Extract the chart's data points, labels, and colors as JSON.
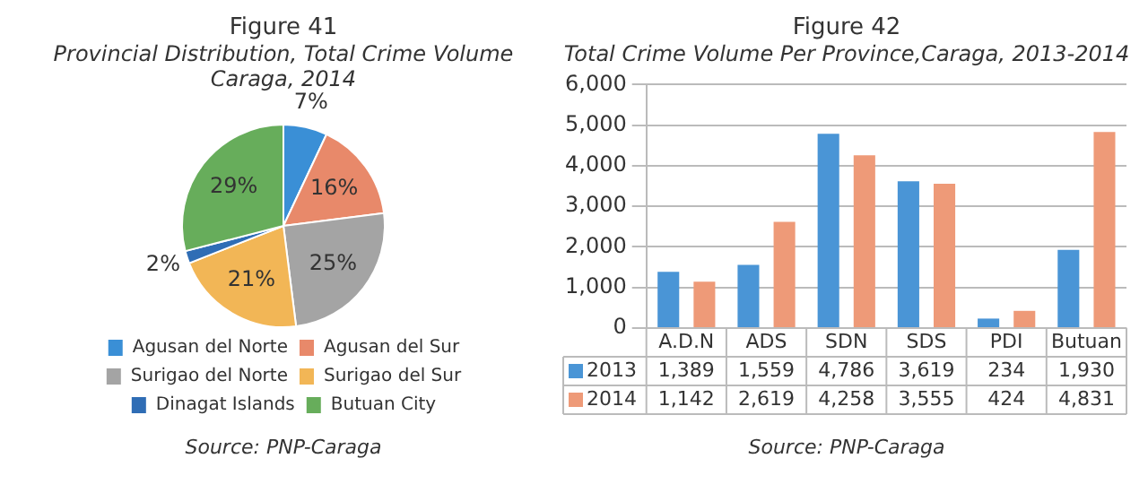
{
  "chart_data": [
    {
      "type": "pie",
      "title": "Figure 41",
      "subtitle": "Provincial Distribution, Total Crime Volume Caraga, 2014",
      "categories": [
        "Agusan del Norte",
        "Agusan del Sur",
        "Surigao del Norte",
        "Surigao del Sur",
        "Dinagat Islands",
        "Butuan City"
      ],
      "values": [
        7,
        16,
        25,
        21,
        2,
        29
      ],
      "value_labels": [
        "7%",
        "16%",
        "25%",
        "21%",
        "2%",
        "29%"
      ],
      "colors": [
        "#3a8fd6",
        "#e8896a",
        "#a4a4a4",
        "#f2b656",
        "#2f6db5",
        "#67ad5b"
      ],
      "legend": "bottom",
      "annotations": [
        "Source: PNP-Caraga"
      ]
    },
    {
      "type": "bar",
      "title": "Figure 42",
      "subtitle": "Total Crime Volume Per Province,Caraga, 2013-2014",
      "categories": [
        "A.D.N",
        "ADS",
        "SDN",
        "SDS",
        "PDI",
        "Butuan"
      ],
      "series": [
        {
          "name": "2013",
          "color": "#4a95d6",
          "values": [
            1389,
            1559,
            4786,
            3619,
            234,
            1930
          ],
          "value_labels": [
            "1,389",
            "1,559",
            "4,786",
            "3,619",
            "234",
            "1,930"
          ]
        },
        {
          "name": "2014",
          "color": "#ee9a78",
          "values": [
            1142,
            2619,
            4258,
            3555,
            424,
            4831
          ],
          "value_labels": [
            "1,142",
            "2,619",
            "4,258",
            "3,555",
            "424",
            "4,831"
          ]
        }
      ],
      "ylim": [
        0,
        6000
      ],
      "yticks": [
        {
          "value": 0,
          "label": "0"
        },
        {
          "value": 1000,
          "label": "1,000"
        },
        {
          "value": 2000,
          "label": "2,000"
        },
        {
          "value": 3000,
          "label": "3,000"
        },
        {
          "value": 4000,
          "label": "4,000"
        },
        {
          "value": 5000,
          "label": "5,000"
        },
        {
          "value": 6000,
          "label": "6,000"
        }
      ],
      "grid": "y",
      "legend": "bottom",
      "annotations": [
        "Source: PNP-Caraga"
      ]
    }
  ]
}
